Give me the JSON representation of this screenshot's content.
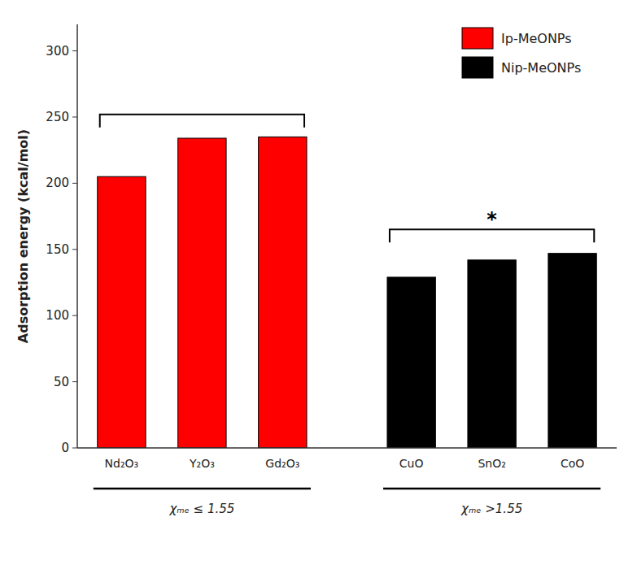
{
  "chart_data": {
    "type": "bar",
    "ylabel": "Adsorption energy (kcal/mol)",
    "categories": [
      "Nd₂O₃",
      "Y₂O₃",
      "Gd₂O₃",
      "CuO",
      "SnO₂",
      "CoO"
    ],
    "series": [
      {
        "name": "Ip-MeONPs",
        "color": "#FF0000",
        "values": [
          205,
          234,
          235,
          null,
          null,
          null
        ]
      },
      {
        "name": "Nip-MeONPs",
        "color": "#000000",
        "values": [
          null,
          null,
          null,
          129,
          142,
          147
        ]
      }
    ],
    "groups": [
      {
        "label": "χₘₑ ≤ 1.55",
        "span": [
          0,
          2
        ]
      },
      {
        "label": "χₘₑ >1.55",
        "span": [
          3,
          5
        ]
      }
    ],
    "brackets": [
      {
        "span": [
          0,
          2
        ],
        "y": 252
      },
      {
        "span": [
          3,
          5
        ],
        "y": 165,
        "text": "*"
      }
    ],
    "ylim": [
      0,
      320
    ],
    "yticks": [
      0,
      50,
      100,
      150,
      200,
      250,
      300
    ],
    "grid": false,
    "legend": "upper-right"
  }
}
